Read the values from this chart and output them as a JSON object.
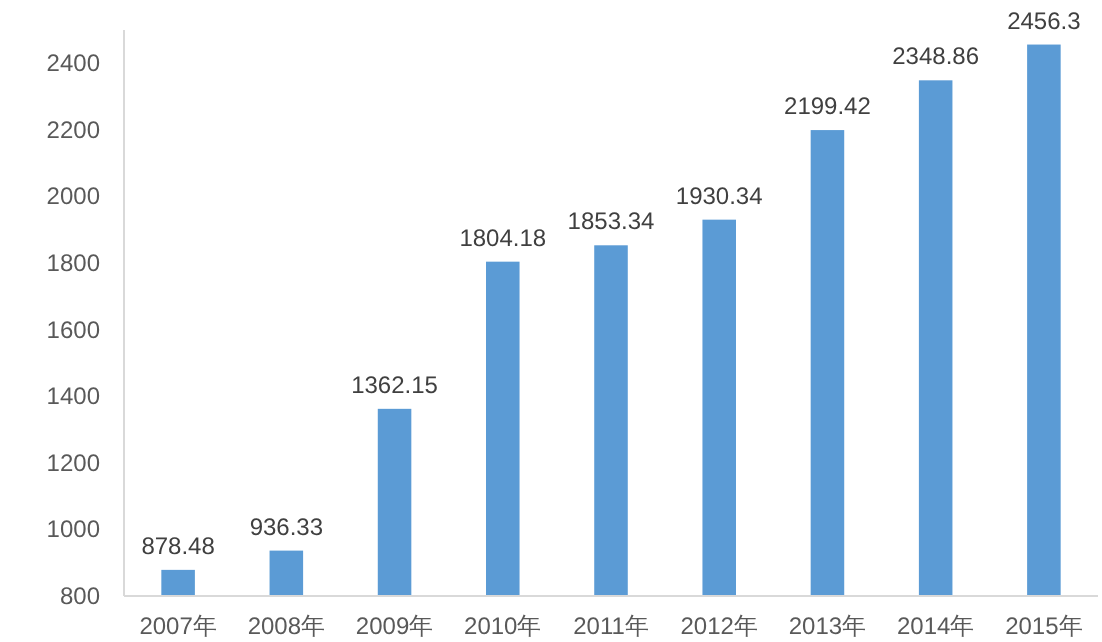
{
  "chart_data": {
    "type": "bar",
    "categories": [
      "2007年",
      "2008年",
      "2009年",
      "2010年",
      "2011年",
      "2012年",
      "2013年",
      "2014年",
      "2015年"
    ],
    "values": [
      878.48,
      936.33,
      1362.15,
      1804.18,
      1853.34,
      1930.34,
      2199.42,
      2348.86,
      2456.3
    ],
    "color": "#5b9bd5",
    "ylim": [
      800,
      2500
    ],
    "yticks": [
      800,
      1000,
      1200,
      1400,
      1600,
      1800,
      2000,
      2200,
      2400
    ],
    "data_labels": true
  }
}
